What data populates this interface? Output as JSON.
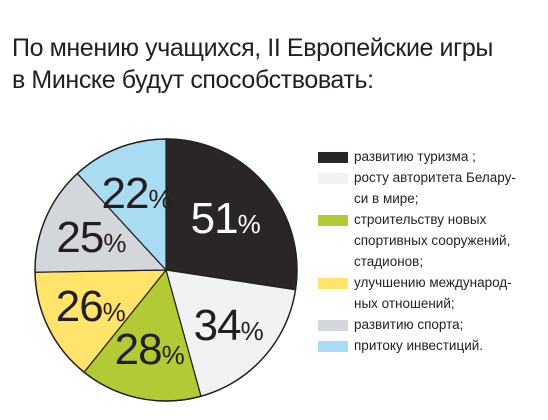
{
  "title": {
    "line1": "По мнению учащихся, II Европейские игры",
    "line2": "в Минске будут способствовать:"
  },
  "chart_data": {
    "type": "pie",
    "values": [
      51,
      34,
      28,
      26,
      25,
      22
    ],
    "value_labels": [
      "51",
      "34",
      "28",
      "26",
      "25",
      "22"
    ],
    "percent_sign": "%",
    "categories": [
      "развитию туризма ;",
      "росту авторитета Беларуси в мире;",
      "строительству новых спортивных сооружений, стадионов;",
      "улучшению международных отношений;",
      "развитию спорта;",
      "притоку инвестиций."
    ],
    "colors": [
      "#2b2626",
      "#f2f2f2",
      "#b4c936",
      "#ffe36b",
      "#d3d6da",
      "#a9dcf3"
    ],
    "legend_placement": "right"
  },
  "legend": {
    "items": [
      {
        "lines": [
          "развитию туризма ;"
        ]
      },
      {
        "lines": [
          "росту авторитета Белару-",
          "си в мире;"
        ]
      },
      {
        "lines": [
          "строительству новых",
          "спортивных сооружений,",
          "стадионов;"
        ]
      },
      {
        "lines": [
          "улучшению международ-",
          "ных отношений;"
        ]
      },
      {
        "lines": [
          "развитию спорта;"
        ]
      },
      {
        "lines": [
          "притоку инвестиций."
        ]
      }
    ]
  }
}
